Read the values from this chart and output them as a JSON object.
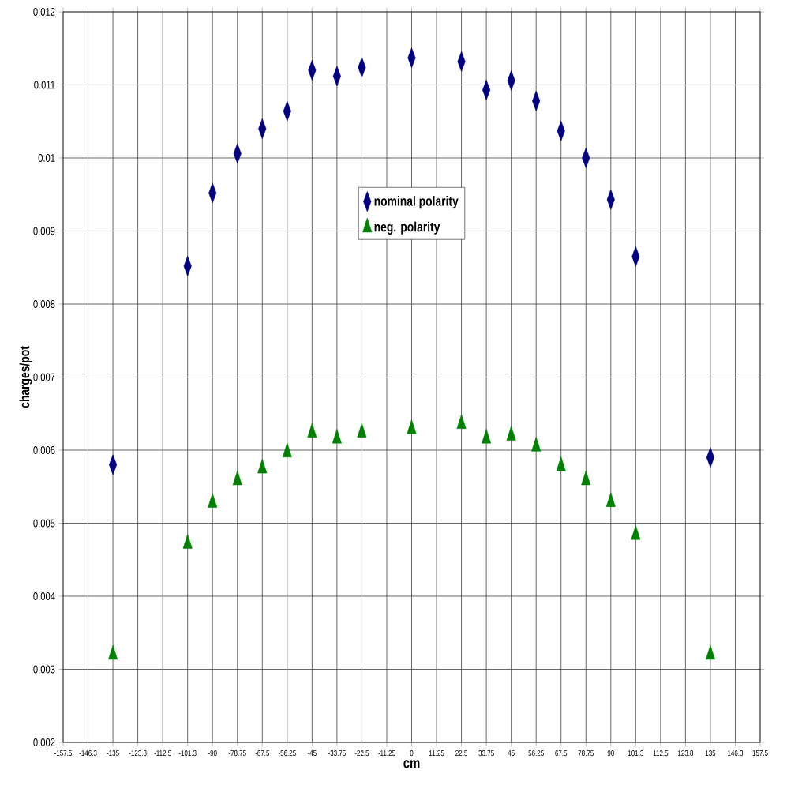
{
  "chart_data": {
    "type": "scatter",
    "xlabel": "cm",
    "ylabel": "charges/pot",
    "categories": [
      "-157.5",
      "-146.3",
      "-135",
      "-123.8",
      "-112.5",
      "-101.3",
      "-90",
      "-78.75",
      "-67.5",
      "-56.25",
      "-45",
      "-33.75",
      "-22.5",
      "-11.25",
      "0",
      "11.25",
      "22.5",
      "33.75",
      "45",
      "56.25",
      "67.5",
      "78.75",
      "90",
      "101.3",
      "112.5",
      "123.8",
      "135",
      "146.3",
      "157.5"
    ],
    "series": [
      {
        "name": "nominal polarity",
        "color": "#000080",
        "marker": "diamond",
        "values": [
          null,
          null,
          0.0058,
          null,
          null,
          0.00852,
          0.00952,
          0.01006,
          0.0104,
          0.01064,
          0.0112,
          0.01112,
          0.01124,
          null,
          0.01137,
          null,
          0.01132,
          0.01093,
          0.01106,
          0.01078,
          0.01037,
          0.01,
          0.00943,
          0.00865,
          null,
          null,
          0.0059,
          null,
          null
        ]
      },
      {
        "name": "neg. polarity",
        "color": "#008000",
        "marker": "triangle",
        "values": [
          null,
          null,
          0.0032,
          null,
          null,
          0.00472,
          0.00528,
          0.00559,
          0.00575,
          0.00597,
          0.00624,
          0.00616,
          0.00624,
          null,
          0.00629,
          null,
          0.00636,
          0.00616,
          0.0062,
          0.00605,
          0.00578,
          0.00559,
          0.00529,
          0.00484,
          null,
          null,
          0.0032,
          null,
          null
        ]
      }
    ],
    "ylim": [
      0.002,
      0.012
    ],
    "yticks": [
      0.002,
      0.003,
      0.004,
      0.005,
      0.006,
      0.007,
      0.008,
      0.009,
      0.01,
      0.011,
      0.012
    ],
    "grid": true,
    "legend": "center"
  }
}
